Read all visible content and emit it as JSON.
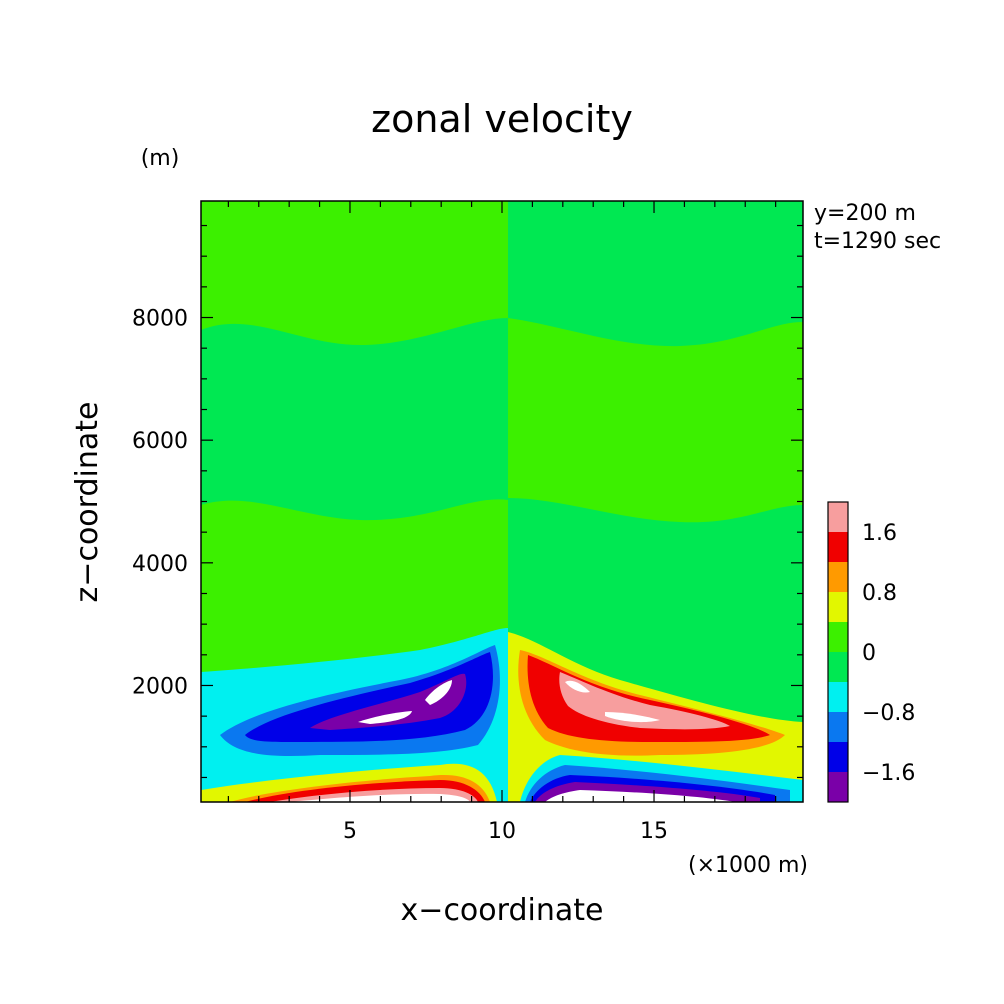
{
  "chart_data": {
    "type": "heatmap",
    "title": "zonal velocity",
    "xlabel": "x−coordinate",
    "ylabel": "z−coordinate",
    "x_unit": "(×1000 m)",
    "y_unit": "(m)",
    "annotations": [
      "y=200 m",
      "t=1290 sec"
    ],
    "xlim": [
      0.1,
      19.9
    ],
    "ylim": [
      100,
      9900
    ],
    "x_ticks": [
      5,
      10,
      15
    ],
    "y_ticks": [
      2000,
      4000,
      6000,
      8000
    ],
    "colorbar": {
      "levels": [
        -2.0,
        -1.6,
        -1.2,
        -0.8,
        -0.4,
        0,
        0.4,
        0.8,
        1.2,
        1.6,
        2.0
      ],
      "colors": [
        "#7a00a8",
        "#0000e8",
        "#0a78f0",
        "#00f0f0",
        "#00e852",
        "#3cf000",
        "#e2f700",
        "#ff9a00",
        "#f00000",
        "#f79e9e"
      ],
      "tick_labels": [
        "−1.6",
        "−0.8",
        "0",
        "0.8",
        "1.6"
      ],
      "tick_values": [
        -1.6,
        -0.8,
        0,
        0.8,
        1.6
      ]
    },
    "fields": {
      "background_left": "#3cf000",
      "background_right": "#00e852",
      "extreme_color": "#ffffff"
    }
  }
}
